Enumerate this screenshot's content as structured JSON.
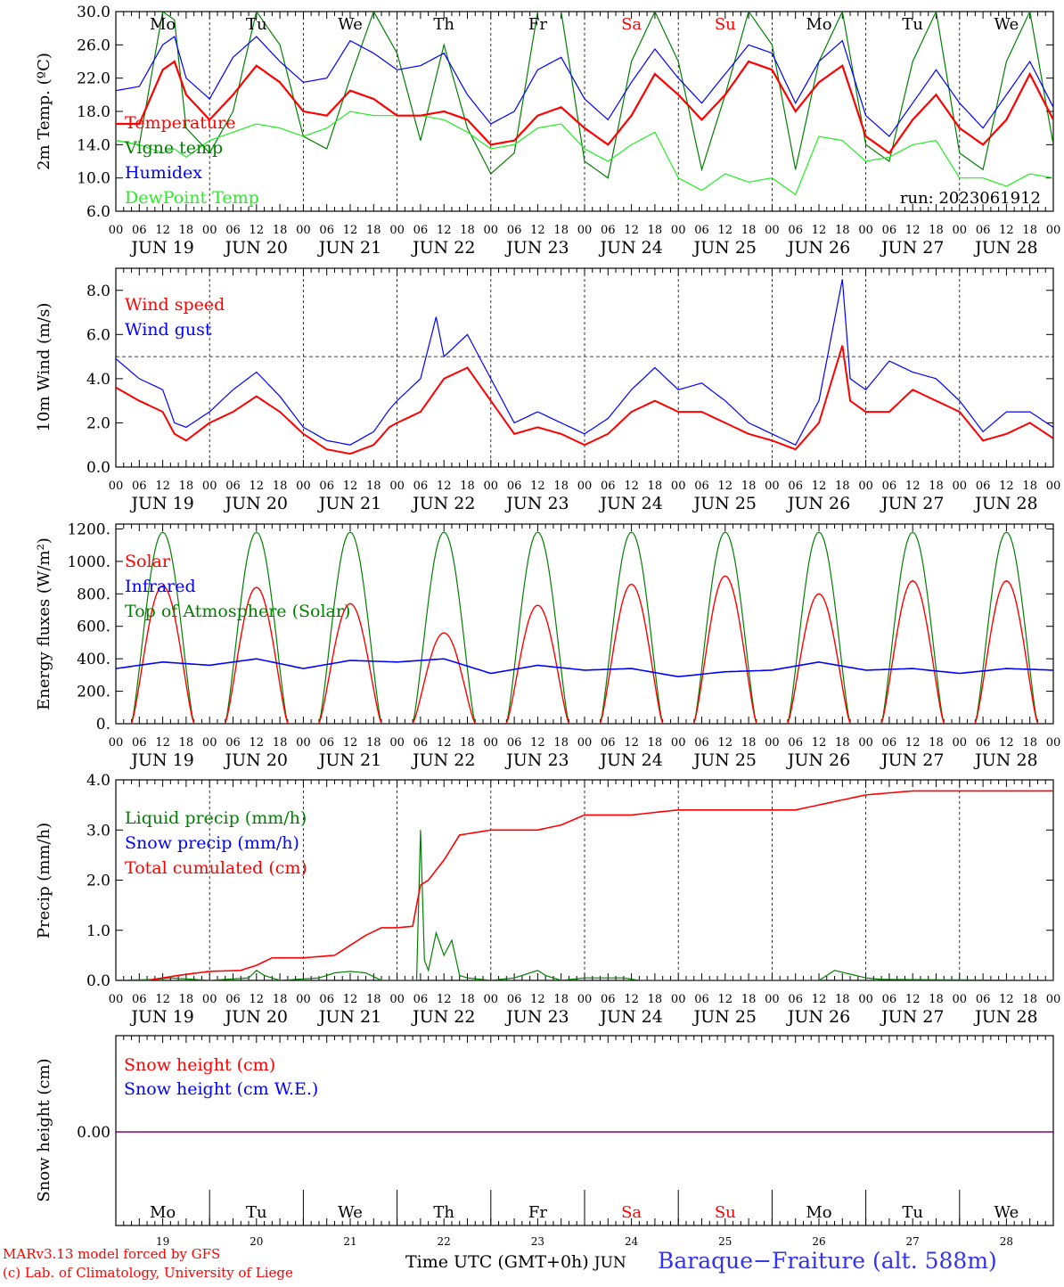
{
  "chart_data": [
    {
      "type": "line",
      "ylabel": "2m Temp. (ºC)",
      "ylim": [
        6,
        30
      ],
      "yticks": [
        "6.0",
        "10.0",
        "14.0",
        "18.0",
        "22.0",
        "26.0",
        "30.0"
      ],
      "grid": "dashed vertical day separators",
      "legend_placement": "middle-left",
      "run_label": "run: 2023061912",
      "series": [
        {
          "name": "Temperature",
          "color": "#ff0000",
          "x_hours": [
            0,
            6,
            12,
            15,
            18,
            24,
            30,
            36,
            42,
            48,
            54,
            60,
            66,
            72,
            78,
            84,
            90,
            96,
            102,
            108,
            114,
            120,
            126,
            132,
            138,
            144,
            150,
            156,
            162,
            168,
            174,
            180,
            186,
            192,
            198,
            204,
            210,
            216,
            222,
            228,
            234,
            240
          ],
          "values": [
            16.5,
            16.5,
            23.0,
            24.0,
            20.0,
            17.0,
            20.0,
            23.5,
            21.5,
            18.0,
            17.5,
            20.5,
            19.5,
            17.5,
            17.5,
            18.0,
            17.0,
            14.0,
            14.5,
            17.5,
            18.5,
            16.0,
            14.0,
            17.5,
            22.5,
            20.0,
            17.0,
            20.0,
            24.0,
            23.0,
            18.0,
            21.5,
            23.5,
            15.0,
            13.0,
            17.0,
            20.0,
            16.0,
            14.0,
            17.0,
            22.5,
            17.0
          ]
        },
        {
          "name": "Vigne temp",
          "color": "#008000",
          "x_hours": [
            0,
            6,
            12,
            15,
            18,
            24,
            30,
            36,
            42,
            48,
            54,
            60,
            66,
            72,
            78,
            84,
            90,
            96,
            102,
            108,
            114,
            120,
            126,
            132,
            138,
            144,
            150,
            156,
            162,
            168,
            174,
            180,
            186,
            192,
            198,
            204,
            210,
            216,
            222,
            228,
            234,
            240
          ],
          "values": [
            14.5,
            14.0,
            30.0,
            29.0,
            16.0,
            13.0,
            18.0,
            30.0,
            26.0,
            15.0,
            13.5,
            22.0,
            30.0,
            25.0,
            14.5,
            26.0,
            16.0,
            10.5,
            13.0,
            30.0,
            30.0,
            12.0,
            10.0,
            24.0,
            30.0,
            24.0,
            11.0,
            20.0,
            30.0,
            26.0,
            11.0,
            24.0,
            30.0,
            14.0,
            12.0,
            24.0,
            30.0,
            13.0,
            11.0,
            24.0,
            30.0,
            14.0
          ]
        },
        {
          "name": "Humidex",
          "color": "#0000ff",
          "x_hours": [
            0,
            6,
            12,
            15,
            18,
            24,
            30,
            36,
            42,
            48,
            54,
            60,
            66,
            72,
            78,
            84,
            90,
            96,
            102,
            108,
            114,
            120,
            126,
            132,
            138,
            144,
            150,
            156,
            162,
            168,
            174,
            180,
            186,
            192,
            198,
            204,
            210,
            216,
            222,
            228,
            234,
            240
          ],
          "values": [
            20.5,
            21.0,
            26.0,
            27.0,
            22.0,
            19.5,
            24.5,
            27.0,
            24.0,
            21.5,
            22.0,
            26.5,
            25.0,
            23.0,
            23.5,
            25.0,
            20.0,
            16.5,
            18.0,
            23.0,
            24.5,
            19.5,
            17.0,
            21.5,
            25.5,
            22.0,
            19.0,
            22.5,
            26.0,
            25.0,
            19.0,
            24.0,
            26.5,
            17.5,
            15.0,
            19.0,
            23.0,
            19.0,
            16.0,
            20.0,
            24.0,
            18.5
          ]
        },
        {
          "name": "DewPoint Temp",
          "color": "#22ee22",
          "x_hours": [
            0,
            6,
            12,
            15,
            18,
            24,
            30,
            36,
            42,
            48,
            54,
            60,
            66,
            72,
            78,
            84,
            90,
            96,
            102,
            108,
            114,
            120,
            126,
            132,
            138,
            144,
            150,
            156,
            162,
            168,
            174,
            180,
            186,
            192,
            198,
            204,
            210,
            216,
            222,
            228,
            234,
            240
          ],
          "values": [
            14.5,
            14.0,
            13.0,
            13.5,
            12.5,
            14.5,
            15.5,
            16.5,
            16.0,
            15.0,
            16.0,
            18.0,
            17.5,
            17.5,
            17.5,
            17.0,
            15.5,
            13.5,
            14.0,
            16.0,
            16.5,
            13.5,
            12.0,
            14.0,
            15.5,
            10.0,
            8.5,
            10.5,
            9.5,
            10.0,
            8.0,
            15.0,
            14.5,
            12.0,
            12.5,
            14.0,
            14.5,
            10.0,
            10.0,
            9.0,
            10.5,
            10.0
          ]
        }
      ]
    },
    {
      "type": "line",
      "ylabel": "10m Wind (m/s)",
      "ylim": [
        0,
        9
      ],
      "yticks": [
        "0.0",
        "2.0",
        "4.0",
        "6.0",
        "8.0"
      ],
      "reference_line": 5.0,
      "legend_placement": "top-left",
      "series": [
        {
          "name": "Wind speed",
          "color": "#ff0000",
          "x_hours": [
            0,
            6,
            12,
            15,
            18,
            24,
            30,
            36,
            42,
            48,
            54,
            60,
            66,
            70,
            72,
            78,
            82,
            84,
            90,
            96,
            102,
            108,
            114,
            120,
            126,
            132,
            138,
            144,
            150,
            156,
            162,
            168,
            174,
            180,
            186,
            188,
            192,
            198,
            204,
            210,
            216,
            222,
            228,
            234,
            240
          ],
          "values": [
            3.6,
            3.0,
            2.5,
            1.5,
            1.2,
            2.0,
            2.5,
            3.2,
            2.5,
            1.5,
            0.8,
            0.6,
            1.0,
            1.8,
            2.0,
            2.5,
            3.5,
            4.0,
            4.5,
            3.0,
            1.5,
            1.8,
            1.5,
            1.0,
            1.5,
            2.5,
            3.0,
            2.5,
            2.5,
            2.0,
            1.5,
            1.2,
            0.8,
            2.0,
            5.5,
            3.0,
            2.5,
            2.5,
            3.5,
            3.0,
            2.5,
            1.2,
            1.5,
            2.0,
            1.3
          ]
        },
        {
          "name": "Wind gust",
          "color": "#0000ff",
          "x_hours": [
            0,
            6,
            12,
            15,
            18,
            24,
            30,
            36,
            42,
            48,
            54,
            60,
            66,
            70,
            72,
            78,
            82,
            84,
            90,
            96,
            102,
            108,
            114,
            120,
            126,
            132,
            138,
            144,
            150,
            156,
            162,
            168,
            174,
            180,
            186,
            188,
            192,
            198,
            204,
            210,
            216,
            222,
            228,
            234,
            240
          ],
          "values": [
            4.9,
            4.0,
            3.5,
            2.0,
            1.8,
            2.5,
            3.5,
            4.3,
            3.2,
            1.8,
            1.2,
            1.0,
            1.6,
            2.6,
            3.0,
            4.0,
            6.8,
            5.0,
            6.0,
            4.0,
            2.0,
            2.5,
            2.0,
            1.5,
            2.2,
            3.5,
            4.5,
            3.5,
            3.8,
            3.0,
            2.0,
            1.5,
            1.0,
            3.0,
            8.5,
            4.0,
            3.5,
            4.8,
            4.3,
            4.0,
            3.0,
            1.6,
            2.5,
            2.5,
            1.8
          ]
        }
      ]
    },
    {
      "type": "line",
      "ylabel": "Energy fluxes (W/m²)",
      "ylim": [
        0,
        1230
      ],
      "yticks": [
        "0.",
        "200.",
        "400.",
        "600.",
        "800.",
        "1000.",
        "1200."
      ],
      "legend_placement": "middle-left",
      "series": [
        {
          "name": "Solar",
          "color": "#ff0000",
          "daily_peak": [
            850,
            840,
            740,
            560,
            730,
            860,
            910,
            800,
            880,
            880
          ]
        },
        {
          "name": "Infrared",
          "color": "#0000ff",
          "x_hours": [
            0,
            12,
            24,
            36,
            48,
            60,
            72,
            84,
            96,
            108,
            120,
            132,
            144,
            156,
            168,
            180,
            192,
            204,
            216,
            228,
            240
          ],
          "values": [
            340,
            380,
            360,
            400,
            340,
            390,
            380,
            400,
            310,
            360,
            330,
            340,
            290,
            320,
            330,
            380,
            330,
            340,
            310,
            340,
            330
          ]
        },
        {
          "name": "Top of Atmosphere (Solar)",
          "color": "#008000",
          "daily_peak": [
            1180,
            1180,
            1180,
            1180,
            1180,
            1180,
            1180,
            1180,
            1180,
            1180
          ]
        }
      ]
    },
    {
      "type": "line",
      "ylabel": "Precip (mm/h)",
      "ylim": [
        0,
        4.0
      ],
      "yticks": [
        "0.0",
        "1.0",
        "2.0",
        "3.0",
        "4.0"
      ],
      "legend_placement": "top-left",
      "series": [
        {
          "name": "Liquid precip (mm/h)",
          "color": "#008000",
          "x_hours": [
            0,
            10,
            14,
            24,
            34,
            36,
            38,
            42,
            52,
            56,
            60,
            64,
            68,
            77,
            78,
            79,
            80,
            82,
            84,
            86,
            88,
            90,
            96,
            102,
            108,
            110,
            114,
            120,
            130,
            134,
            140,
            156,
            180,
            184,
            192,
            196,
            240
          ],
          "values": [
            0,
            0.02,
            0.05,
            0,
            0.05,
            0.2,
            0.1,
            0,
            0.05,
            0.15,
            0.18,
            0.15,
            0,
            0,
            3.0,
            0.4,
            0.2,
            0.95,
            0.5,
            0.8,
            0.1,
            0.05,
            0,
            0.05,
            0.2,
            0.1,
            0,
            0.05,
            0.05,
            0,
            0,
            0,
            0,
            0.2,
            0.05,
            0.02,
            0
          ]
        },
        {
          "name": "Snow precip (mm/h)",
          "color": "#0000ff",
          "x_hours": [
            0,
            240
          ],
          "values": [
            0,
            0
          ]
        },
        {
          "name": "Total cumulated (cm)",
          "color": "#ff0000",
          "x_hours": [
            0,
            8,
            16,
            24,
            32,
            36,
            40,
            48,
            56,
            60,
            64,
            68,
            72,
            76,
            77,
            78,
            80,
            84,
            88,
            96,
            108,
            114,
            120,
            132,
            144,
            156,
            174,
            180,
            192,
            204,
            240
          ],
          "values": [
            0,
            0,
            0.1,
            0.18,
            0.2,
            0.3,
            0.45,
            0.45,
            0.5,
            0.7,
            0.9,
            1.05,
            1.05,
            1.08,
            1.5,
            1.9,
            2.0,
            2.4,
            2.9,
            3.0,
            3.0,
            3.1,
            3.3,
            3.3,
            3.4,
            3.4,
            3.4,
            3.5,
            3.7,
            3.78,
            3.78
          ]
        }
      ]
    },
    {
      "type": "line",
      "ylabel": "Snow height (cm)",
      "ytick": "0.00",
      "legend_placement": "top-left",
      "series": [
        {
          "name": "Snow height (cm)",
          "color": "#ff0000",
          "x_hours": [
            0,
            240
          ],
          "values": [
            0,
            0
          ]
        },
        {
          "name": "Snow height (cm W.E.)",
          "color": "#0000ff",
          "x_hours": [
            0,
            240
          ],
          "values": [
            0,
            0
          ]
        }
      ]
    }
  ],
  "x_axis": {
    "hour_labels": [
      "00",
      "06",
      "12",
      "18"
    ],
    "end_label": "00",
    "dates": [
      "JUN 19",
      "JUN 20",
      "JUN 21",
      "JUN 22",
      "JUN 23",
      "JUN 24",
      "JUN 25",
      "JUN 26",
      "JUN 27",
      "JUN 28"
    ],
    "weekdays": [
      "Mo",
      "Tu",
      "We",
      "Th",
      "Fr",
      "Sa",
      "Su",
      "Mo",
      "Tu",
      "We"
    ],
    "weekend_flags": [
      false,
      false,
      false,
      false,
      false,
      true,
      true,
      false,
      false,
      false
    ],
    "day_numbers": [
      "19",
      "20",
      "21",
      "22",
      "23",
      "24",
      "25",
      "26",
      "27",
      "28"
    ],
    "title": "Time UTC (GMT+0h)",
    "month": "JUN"
  },
  "footer": {
    "credit_line1": "MARv3.13 model forced by GFS",
    "credit_line2": "(c) Lab. of Climatology, University of Liege",
    "station": "Baraque−Fraiture (alt. 588m)"
  },
  "colors": {
    "weekday_text": "#000000",
    "weekend_text": "#ff0000",
    "station_text": "#3333ee",
    "credit_text": "#ff0000"
  }
}
